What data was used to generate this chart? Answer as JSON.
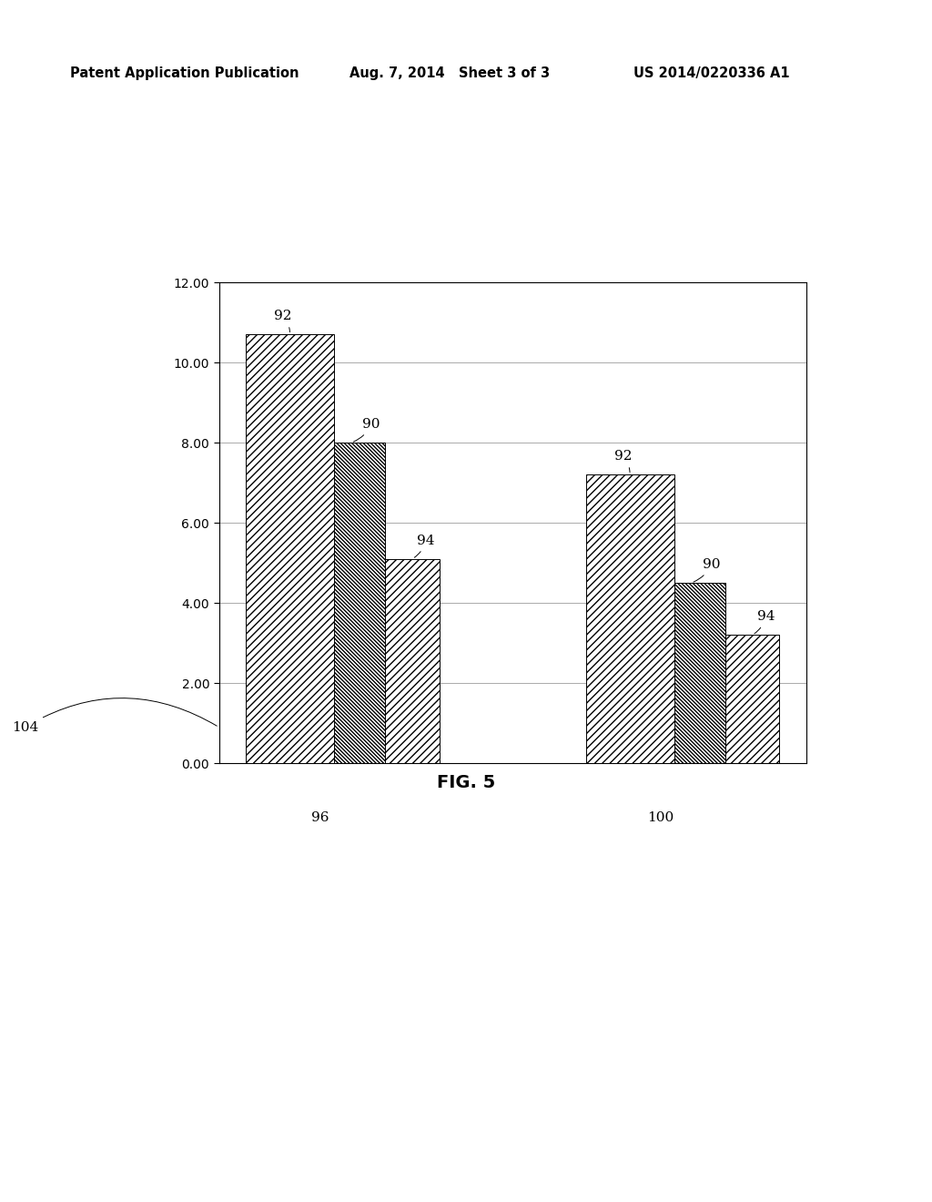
{
  "header_left": "Patent Application Publication",
  "header_mid": "Aug. 7, 2014   Sheet 3 of 3",
  "header_right": "US 2014/0220336 A1",
  "groups": [
    "96",
    "100"
  ],
  "bar_labels": [
    "92",
    "90",
    "94"
  ],
  "values_group1": [
    10.7,
    8.0,
    5.1
  ],
  "values_group2": [
    7.2,
    4.5,
    3.2
  ],
  "ylim": [
    0.0,
    12.0
  ],
  "yticks": [
    0.0,
    2.0,
    4.0,
    6.0,
    8.0,
    10.0,
    12.0
  ],
  "bar_facecolor": "white",
  "bar_edgecolor": "black",
  "grid_color": "#aaaaaa",
  "background_color": "white",
  "fig_caption": "FIG. 5"
}
